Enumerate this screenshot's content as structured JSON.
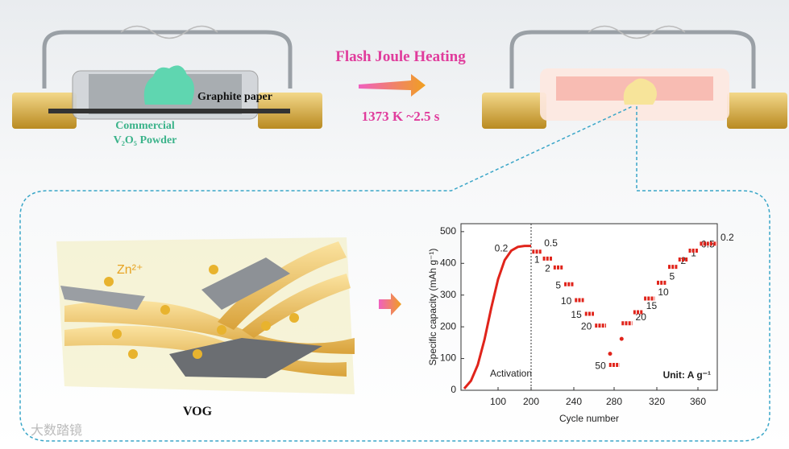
{
  "top": {
    "title": "Flash Joule Heating",
    "condition": "1373 K  ~2.5 s",
    "graphite_label": "Graphite paper",
    "powder_label": [
      "Commercial",
      "V₂O₅ Powder"
    ]
  },
  "bottom": {
    "ion_label": "Zn²⁺",
    "material_label": "VOG"
  },
  "watermark": "大数踏镜",
  "chart_data": {
    "type": "rate",
    "xlabel": "Cycle number",
    "ylabel": "Specific capacity (mAh g⁻¹)",
    "unit_note": "Unit: A g⁻¹",
    "xlim": [
      0,
      380
    ],
    "xticks": [
      100,
      200,
      240,
      280,
      320,
      360
    ],
    "ylim": [
      0,
      525
    ],
    "yticks": [
      0,
      100,
      200,
      300,
      400,
      500
    ],
    "color": "#e0241b",
    "activation": {
      "name": "Activation",
      "label": "0.2",
      "x": [
        0,
        20,
        40,
        60,
        80,
        100,
        120,
        140,
        160,
        180,
        200
      ],
      "values": [
        5,
        30,
        80,
        160,
        260,
        350,
        410,
        440,
        452,
        455,
        455
      ]
    },
    "steps": [
      {
        "label": "0.5",
        "x": [
          201,
          210
        ],
        "value": 437
      },
      {
        "label": "1",
        "x": [
          211,
          220
        ],
        "value": 415
      },
      {
        "label": "2",
        "x": [
          221,
          230
        ],
        "value": 387
      },
      {
        "label": "5",
        "x": [
          231,
          240
        ],
        "value": 334
      },
      {
        "label": "10",
        "x": [
          241,
          250
        ],
        "value": 284
      },
      {
        "label": "15",
        "x": [
          251,
          260
        ],
        "value": 241
      },
      {
        "label": "20",
        "x": [
          261,
          272
        ],
        "value": 204
      },
      {
        "label": "50",
        "x": [
          275,
          285
        ],
        "value": 80
      },
      {
        "label": "20",
        "x": [
          287,
          297
        ],
        "value": 211
      },
      {
        "label": "15",
        "x": [
          298,
          307
        ],
        "value": 246
      },
      {
        "label": "10",
        "x": [
          308,
          318
        ],
        "value": 289
      },
      {
        "label": "5",
        "x": [
          320,
          329
        ],
        "value": 339
      },
      {
        "label": "2",
        "x": [
          331,
          340
        ],
        "value": 389
      },
      {
        "label": "1",
        "x": [
          341,
          350
        ],
        "value": 412
      },
      {
        "label": "0.5",
        "x": [
          351,
          360
        ],
        "value": 440
      },
      {
        "label": "0.2",
        "x": [
          362,
          380
        ],
        "value": 462
      }
    ],
    "outliers": {
      "x": [
        276,
        287
      ],
      "values": [
        115,
        162
      ]
    }
  }
}
